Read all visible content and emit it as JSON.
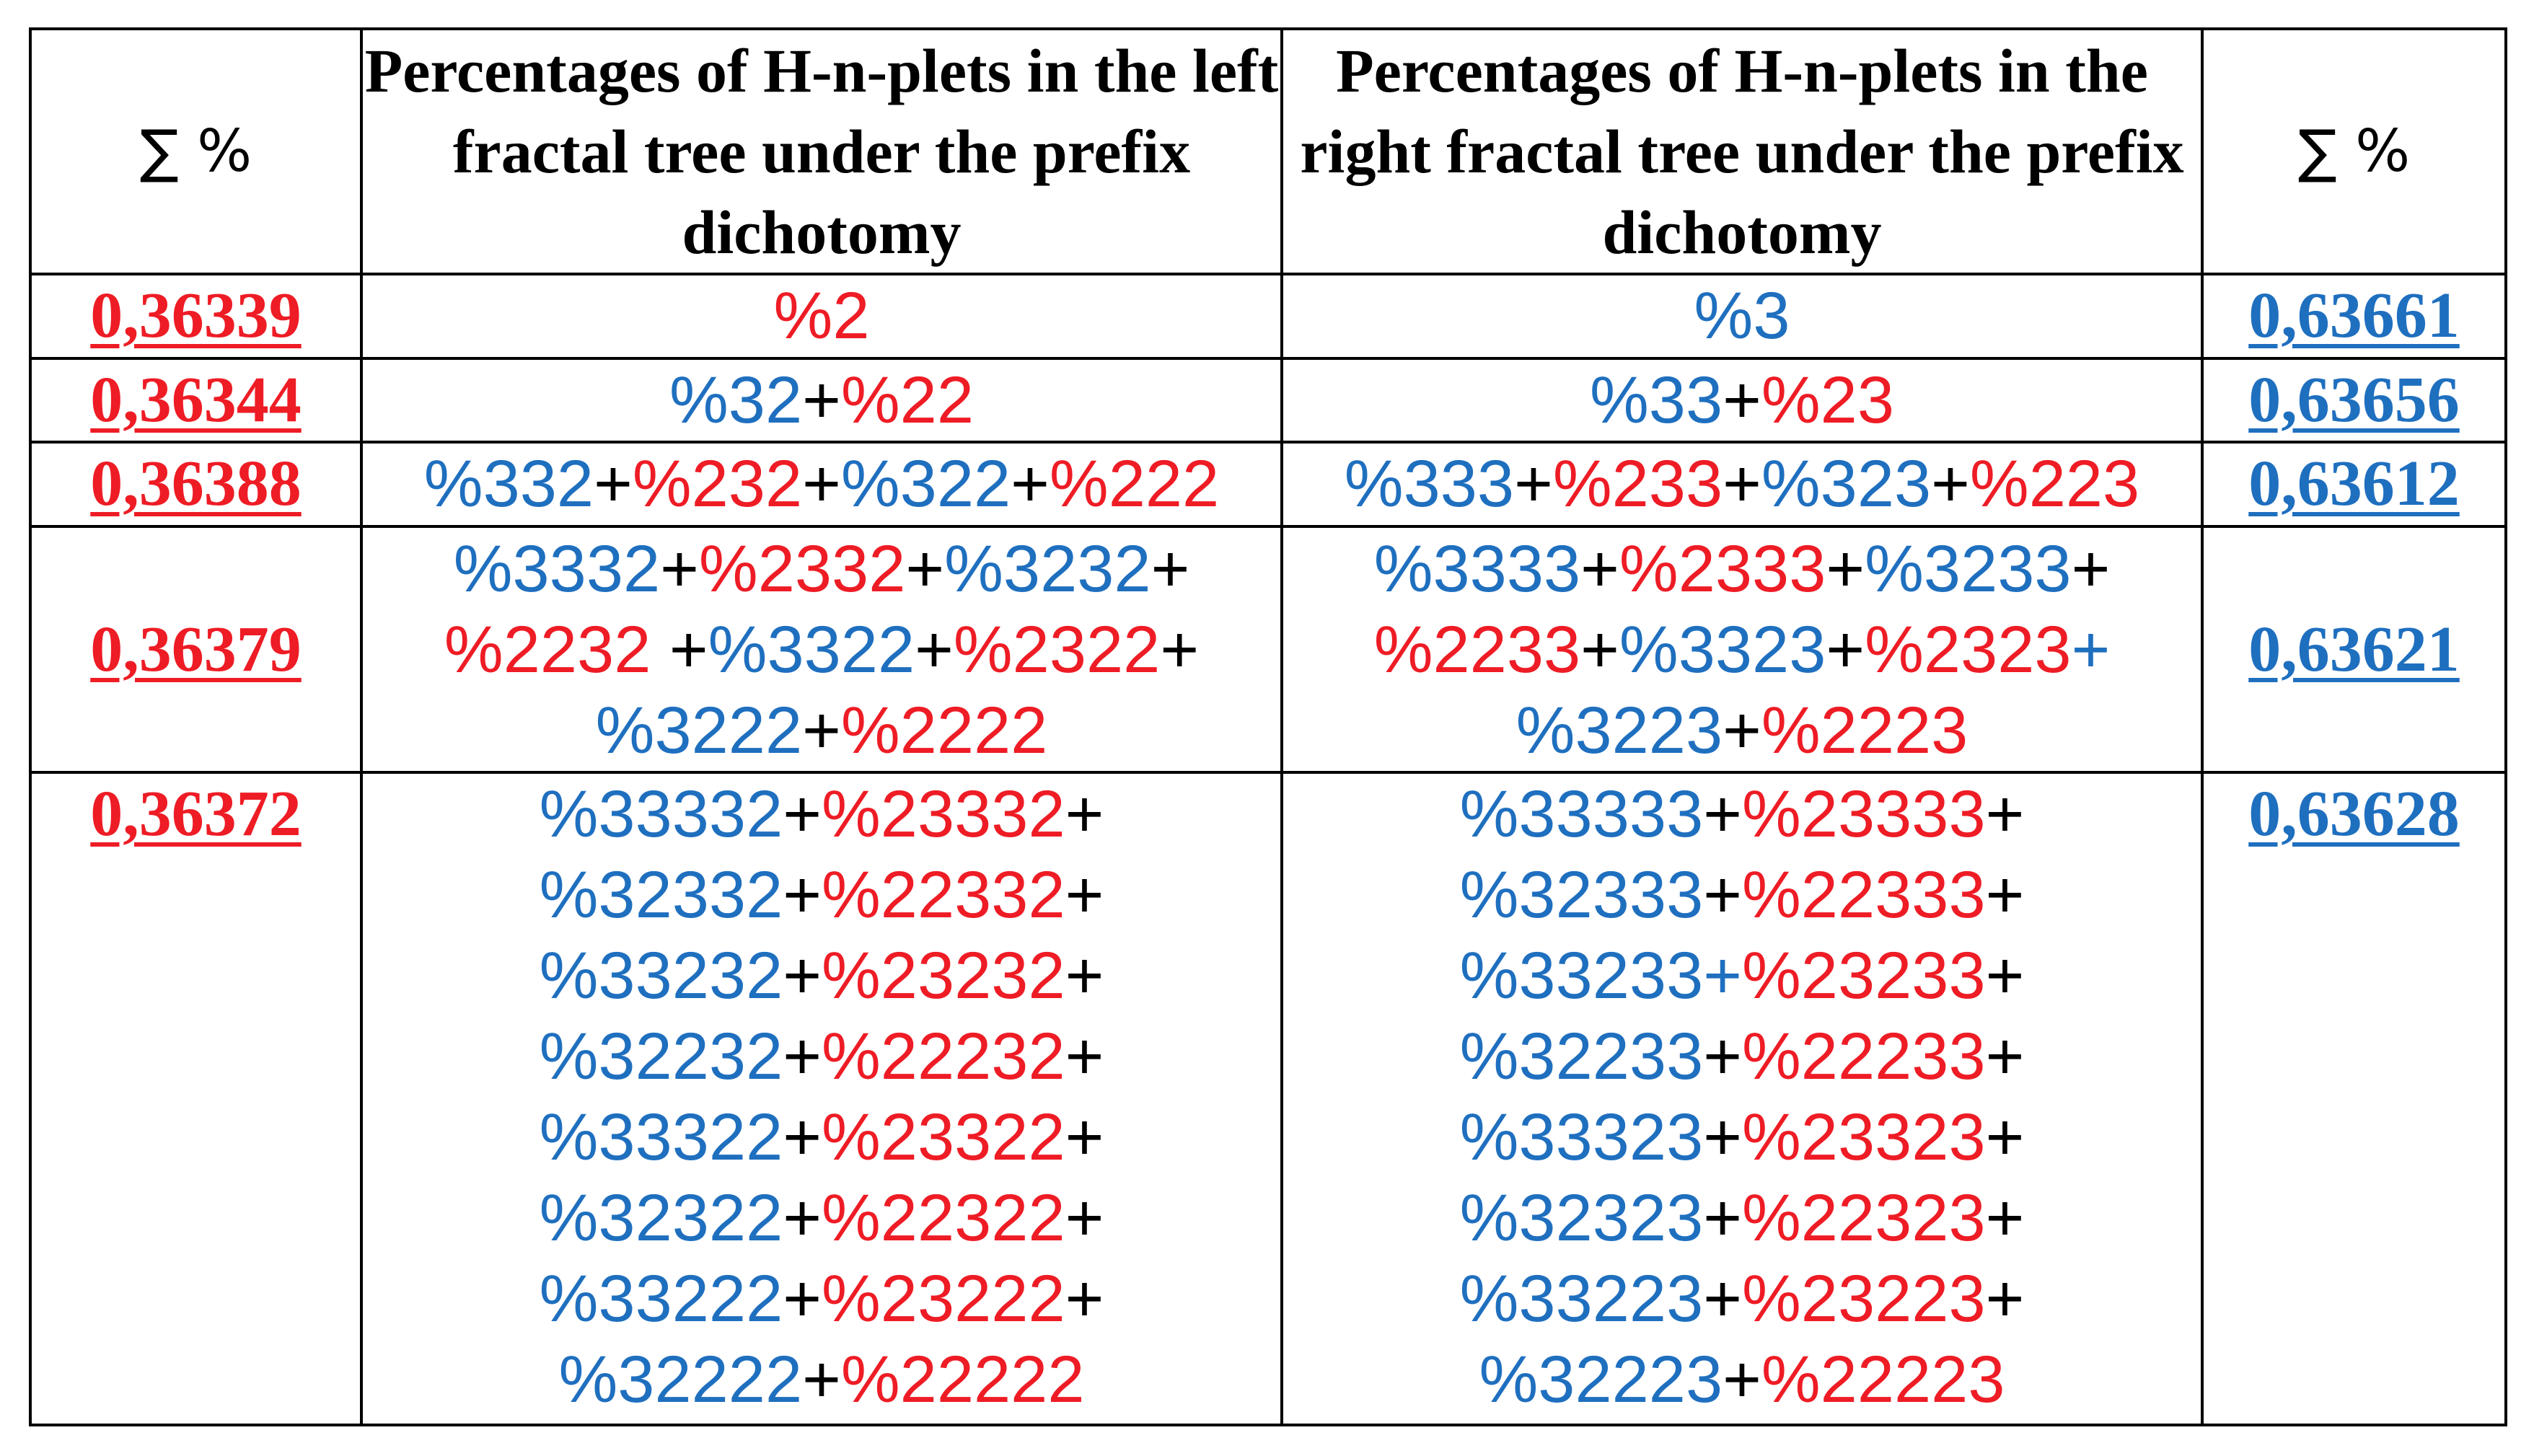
{
  "header": {
    "sum_left": "∑ %",
    "left_title": "Percentages of H-n-plets in the left fractal tree under the prefix dichotomy",
    "right_title": "Percentages of H-n-plets in the right fractal tree under the prefix dichotomy",
    "sum_right": "∑ %"
  },
  "colors": {
    "red": "#ee1c25",
    "blue": "#1f6fbf",
    "black": "#000000"
  },
  "rows": [
    {
      "left_sum": "0,36339",
      "right_sum": "0,63661",
      "left_lines": [
        [
          {
            "t": "%2",
            "c": "red"
          }
        ]
      ],
      "right_lines": [
        [
          {
            "t": "%3",
            "c": "blue"
          }
        ]
      ]
    },
    {
      "left_sum": "0,36344",
      "right_sum": "0,63656",
      "left_lines": [
        [
          {
            "t": "%32",
            "c": "blue"
          },
          {
            "t": "+",
            "c": "black"
          },
          {
            "t": "%22",
            "c": "red"
          }
        ]
      ],
      "right_lines": [
        [
          {
            "t": "%33",
            "c": "blue"
          },
          {
            "t": "+",
            "c": "black"
          },
          {
            "t": "%23",
            "c": "red"
          }
        ]
      ]
    },
    {
      "left_sum": "0,36388",
      "right_sum": "0,63612",
      "left_lines": [
        [
          {
            "t": "%332",
            "c": "blue"
          },
          {
            "t": "+",
            "c": "black"
          },
          {
            "t": "%232",
            "c": "red"
          },
          {
            "t": "+",
            "c": "black"
          },
          {
            "t": "%322",
            "c": "blue"
          },
          {
            "t": "+",
            "c": "black"
          },
          {
            "t": "%222",
            "c": "red"
          }
        ]
      ],
      "right_lines": [
        [
          {
            "t": "%333",
            "c": "blue"
          },
          {
            "t": "+",
            "c": "black"
          },
          {
            "t": "%233",
            "c": "red"
          },
          {
            "t": "+",
            "c": "black"
          },
          {
            "t": "%323",
            "c": "blue"
          },
          {
            "t": "+",
            "c": "black"
          },
          {
            "t": "%223",
            "c": "red"
          }
        ]
      ]
    },
    {
      "left_sum": "0,36379",
      "right_sum": "0,63621",
      "left_lines": [
        [
          {
            "t": "%3332",
            "c": "blue"
          },
          {
            "t": "+",
            "c": "black"
          },
          {
            "t": "%2332",
            "c": "red"
          },
          {
            "t": "+",
            "c": "black"
          },
          {
            "t": "%3232",
            "c": "blue"
          },
          {
            "t": "+",
            "c": "black"
          }
        ],
        [
          {
            "t": "%2232",
            "c": "red"
          },
          {
            "t": " +",
            "c": "black"
          },
          {
            "t": "%3322",
            "c": "blue"
          },
          {
            "t": "+",
            "c": "black"
          },
          {
            "t": "%2322",
            "c": "red"
          },
          {
            "t": "+",
            "c": "black"
          }
        ],
        [
          {
            "t": "%3222",
            "c": "blue"
          },
          {
            "t": "+",
            "c": "black"
          },
          {
            "t": "%2222",
            "c": "red"
          }
        ]
      ],
      "right_lines": [
        [
          {
            "t": "%3333",
            "c": "blue"
          },
          {
            "t": "+",
            "c": "black"
          },
          {
            "t": "%2333",
            "c": "red"
          },
          {
            "t": "+",
            "c": "black"
          },
          {
            "t": "%3233",
            "c": "blue"
          },
          {
            "t": "+",
            "c": "black"
          }
        ],
        [
          {
            "t": "%2233",
            "c": "red"
          },
          {
            "t": "+",
            "c": "black"
          },
          {
            "t": "%3323",
            "c": "blue"
          },
          {
            "t": "+",
            "c": "black"
          },
          {
            "t": "%2323",
            "c": "red"
          },
          {
            "t": "+",
            "c": "blue"
          }
        ],
        [
          {
            "t": "%3223",
            "c": "blue"
          },
          {
            "t": "+",
            "c": "black"
          },
          {
            "t": "%2223",
            "c": "red"
          }
        ]
      ]
    },
    {
      "left_sum": "0,36372",
      "right_sum": "0,63628",
      "left_lines": [
        [
          {
            "t": "%33332",
            "c": "blue"
          },
          {
            "t": "+",
            "c": "black"
          },
          {
            "t": "%23332",
            "c": "red"
          },
          {
            "t": "+",
            "c": "black"
          }
        ],
        [
          {
            "t": "%32332",
            "c": "blue"
          },
          {
            "t": "+",
            "c": "black"
          },
          {
            "t": "%22332",
            "c": "red"
          },
          {
            "t": "+",
            "c": "black"
          }
        ],
        [
          {
            "t": "%33232",
            "c": "blue"
          },
          {
            "t": "+",
            "c": "black"
          },
          {
            "t": "%23232",
            "c": "red"
          },
          {
            "t": "+",
            "c": "black"
          }
        ],
        [
          {
            "t": "%32232",
            "c": "blue"
          },
          {
            "t": "+",
            "c": "black"
          },
          {
            "t": "%22232",
            "c": "red"
          },
          {
            "t": "+",
            "c": "black"
          }
        ],
        [
          {
            "t": "%33322",
            "c": "blue"
          },
          {
            "t": "+",
            "c": "black"
          },
          {
            "t": "%23322",
            "c": "red"
          },
          {
            "t": "+",
            "c": "black"
          }
        ],
        [
          {
            "t": "%32322",
            "c": "blue"
          },
          {
            "t": "+",
            "c": "black"
          },
          {
            "t": "%22322",
            "c": "red"
          },
          {
            "t": "+",
            "c": "black"
          }
        ],
        [
          {
            "t": "%33222",
            "c": "blue"
          },
          {
            "t": "+",
            "c": "black"
          },
          {
            "t": "%23222",
            "c": "red"
          },
          {
            "t": "+",
            "c": "black"
          }
        ],
        [
          {
            "t": "%32222",
            "c": "blue"
          },
          {
            "t": "+",
            "c": "black"
          },
          {
            "t": "%22222",
            "c": "red"
          }
        ]
      ],
      "right_lines": [
        [
          {
            "t": "%33333",
            "c": "blue"
          },
          {
            "t": "+",
            "c": "black"
          },
          {
            "t": "%23333",
            "c": "red"
          },
          {
            "t": "+",
            "c": "black"
          }
        ],
        [
          {
            "t": "%32333",
            "c": "blue"
          },
          {
            "t": "+",
            "c": "black"
          },
          {
            "t": "%22333",
            "c": "red"
          },
          {
            "t": "+",
            "c": "black"
          }
        ],
        [
          {
            "t": "%33233",
            "c": "blue"
          },
          {
            "t": "+",
            "c": "blue"
          },
          {
            "t": "%23233",
            "c": "red"
          },
          {
            "t": "+",
            "c": "black"
          }
        ],
        [
          {
            "t": "%32233",
            "c": "blue"
          },
          {
            "t": "+",
            "c": "black"
          },
          {
            "t": "%22233",
            "c": "red"
          },
          {
            "t": "+",
            "c": "black"
          }
        ],
        [
          {
            "t": "%33323",
            "c": "blue"
          },
          {
            "t": "+",
            "c": "black"
          },
          {
            "t": "%23323",
            "c": "red"
          },
          {
            "t": "+",
            "c": "black"
          }
        ],
        [
          {
            "t": "%32323",
            "c": "blue"
          },
          {
            "t": "+",
            "c": "black"
          },
          {
            "t": "%22323",
            "c": "red"
          },
          {
            "t": "+",
            "c": "black"
          }
        ],
        [
          {
            "t": "%33223",
            "c": "blue"
          },
          {
            "t": "+",
            "c": "black"
          },
          {
            "t": "%23223",
            "c": "red"
          },
          {
            "t": "+",
            "c": "black"
          }
        ],
        [
          {
            "t": "%32223",
            "c": "blue"
          },
          {
            "t": "+",
            "c": "black"
          },
          {
            "t": "%22223",
            "c": "red"
          }
        ]
      ]
    }
  ]
}
